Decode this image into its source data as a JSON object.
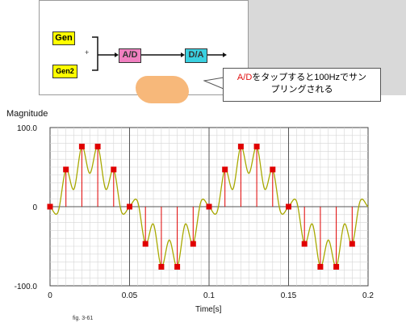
{
  "diagram": {
    "gen_label": "Gen",
    "gen2_label": "Gen2",
    "plus_label": "+",
    "ad_label": "A/D",
    "da_label": "D/A"
  },
  "callout": {
    "highlight": "A/D",
    "line1_rest": "をタップすると100Hzでサン",
    "line2": "プリングされる"
  },
  "chart_data": {
    "type": "line",
    "ylabel": "Magnitude",
    "xlabel": "Time[s]",
    "figure_caption": "fig. 3-61",
    "xlim": [
      0,
      0.2
    ],
    "ylim": [
      -100,
      100
    ],
    "x_ticks": [
      "0",
      "0.05",
      "0.1",
      "0.15",
      "0.2"
    ],
    "y_ticks": [
      "100.0",
      "0",
      "-100.0"
    ],
    "grid": true,
    "series": [
      {
        "style": "curve",
        "color": "#a8a800",
        "x": [
          0,
          0.005,
          0.01,
          0.015,
          0.02,
          0.025,
          0.03,
          0.035,
          0.04,
          0.045,
          0.05,
          0.055,
          0.06,
          0.065,
          0.07,
          0.075,
          0.08,
          0.085,
          0.09,
          0.095,
          0.1,
          0.105,
          0.11,
          0.115,
          0.12,
          0.125,
          0.13,
          0.135,
          0.14,
          0.145,
          0.15,
          0.155,
          0.16,
          0.165,
          0.17,
          0.175,
          0.18,
          0.185,
          0.19,
          0.195,
          0.2
        ],
        "y": [
          0,
          -7,
          47,
          22,
          76,
          42,
          76,
          22,
          47,
          -7,
          0,
          7,
          -47,
          -22,
          -76,
          -42,
          -76,
          -22,
          -47,
          7,
          0,
          -7,
          47,
          22,
          76,
          42,
          76,
          22,
          47,
          -7,
          0,
          7,
          -47,
          -22,
          -76,
          -42,
          -76,
          -22,
          -47,
          7,
          0
        ]
      },
      {
        "style": "stem",
        "color": "#e00000",
        "x": [
          0,
          0.01,
          0.02,
          0.03,
          0.04,
          0.05,
          0.06,
          0.07,
          0.08,
          0.09,
          0.1,
          0.11,
          0.12,
          0.13,
          0.14,
          0.15,
          0.16,
          0.17,
          0.18,
          0.19
        ],
        "y": [
          0,
          47,
          76,
          76,
          47,
          0,
          -47,
          -76,
          -76,
          -47,
          0,
          47,
          76,
          76,
          47,
          0,
          -47,
          -76,
          -76,
          -47
        ]
      }
    ]
  }
}
